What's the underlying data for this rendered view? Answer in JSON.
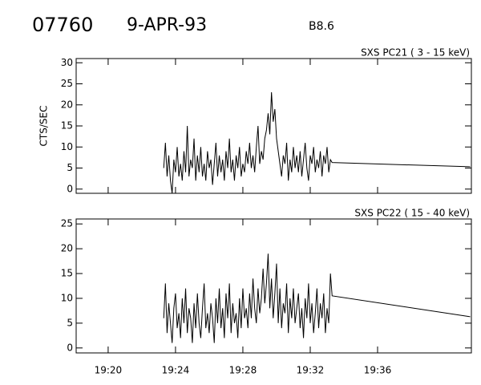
{
  "header": {
    "id": "07760",
    "date": "9-APR-93",
    "class": "B8.6"
  },
  "chart_data": [
    {
      "type": "line",
      "title": "SXS PC21  (  3 - 15 keV)",
      "y_label": "CTS/SEC",
      "x": [
        23.3,
        23.4,
        23.5,
        23.6,
        23.7,
        23.8,
        23.9,
        24.0,
        24.1,
        24.2,
        24.3,
        24.4,
        24.5,
        24.6,
        24.7,
        24.8,
        24.9,
        25.0,
        25.1,
        25.2,
        25.3,
        25.4,
        25.5,
        25.6,
        25.7,
        25.8,
        25.9,
        26.0,
        26.1,
        26.2,
        26.3,
        26.4,
        26.5,
        26.6,
        26.7,
        26.8,
        26.9,
        27.0,
        27.1,
        27.2,
        27.3,
        27.4,
        27.5,
        27.6,
        27.7,
        27.8,
        27.9,
        28.0,
        28.1,
        28.2,
        28.3,
        28.4,
        28.5,
        28.6,
        28.7,
        28.8,
        28.9,
        29.0,
        29.1,
        29.2,
        29.3,
        29.4,
        29.5,
        29.6,
        29.7,
        29.8,
        29.9,
        30.0,
        30.1,
        30.2,
        30.3,
        30.4,
        30.5,
        30.6,
        30.7,
        30.8,
        30.9,
        31.0,
        31.1,
        31.2,
        31.3,
        31.4,
        31.5,
        31.6,
        31.7,
        31.8,
        31.9,
        32.0,
        32.1,
        32.2,
        32.3,
        32.4,
        32.5,
        32.6,
        32.7,
        32.8,
        32.9,
        33.0,
        33.1,
        33.2,
        33.3,
        41.5
      ],
      "values": [
        5,
        11,
        3,
        8,
        2,
        -1,
        7,
        4,
        10,
        3,
        6,
        2,
        9,
        4,
        15,
        3,
        7,
        5,
        12,
        2,
        8,
        4,
        10,
        3,
        6,
        2,
        9,
        5,
        7,
        1,
        6,
        11,
        3,
        8,
        4,
        7,
        2,
        9,
        5,
        12,
        4,
        7,
        2,
        8,
        5,
        10,
        3,
        6,
        4,
        9,
        6,
        11,
        5,
        8,
        4,
        10,
        15,
        6,
        9,
        7,
        12,
        14,
        18,
        13,
        23,
        16,
        19,
        12,
        9,
        6,
        3,
        8,
        6,
        11,
        2,
        7,
        4,
        10,
        5,
        8,
        4,
        9,
        3,
        7,
        11,
        5,
        2,
        8,
        6,
        10,
        4,
        7,
        5,
        9,
        3,
        8,
        6,
        10,
        4,
        7,
        6.3,
        5.3
      ],
      "color": "#000000",
      "xlim": [
        18.1,
        41.57
      ],
      "xticks": [
        20,
        24,
        28,
        32,
        36
      ],
      "ylim": [
        -1,
        31
      ],
      "yticks": [
        0,
        5,
        10,
        15,
        20,
        25,
        30
      ]
    },
    {
      "type": "line",
      "title": "SXS PC22  ( 15 - 40 keV)",
      "x": [
        23.3,
        23.4,
        23.5,
        23.6,
        23.7,
        23.8,
        23.9,
        24.0,
        24.1,
        24.2,
        24.3,
        24.4,
        24.5,
        24.6,
        24.7,
        24.8,
        24.9,
        25.0,
        25.1,
        25.2,
        25.3,
        25.4,
        25.5,
        25.6,
        25.7,
        25.8,
        25.9,
        26.0,
        26.1,
        26.2,
        26.3,
        26.4,
        26.5,
        26.6,
        26.7,
        26.8,
        26.9,
        27.0,
        27.1,
        27.2,
        27.3,
        27.4,
        27.5,
        27.6,
        27.7,
        27.8,
        27.9,
        28.0,
        28.1,
        28.2,
        28.3,
        28.4,
        28.5,
        28.6,
        28.7,
        28.8,
        28.9,
        29.0,
        29.1,
        29.2,
        29.3,
        29.4,
        29.5,
        29.6,
        29.7,
        29.8,
        29.9,
        30.0,
        30.1,
        30.2,
        30.3,
        30.4,
        30.5,
        30.6,
        30.7,
        30.8,
        30.9,
        31.0,
        31.1,
        31.2,
        31.3,
        31.4,
        31.5,
        31.6,
        31.7,
        31.8,
        31.9,
        32.0,
        32.1,
        32.2,
        32.3,
        32.4,
        32.5,
        32.6,
        32.7,
        32.8,
        32.9,
        33.0,
        33.1,
        33.2,
        33.3,
        41.5
      ],
      "values": [
        6,
        13,
        3,
        9,
        5,
        1,
        8,
        11,
        4,
        7,
        2,
        10,
        5,
        12,
        3,
        8,
        6,
        1,
        9,
        4,
        11,
        5,
        2,
        8,
        13,
        4,
        7,
        3,
        9,
        6,
        1,
        10,
        5,
        12,
        4,
        8,
        2,
        11,
        6,
        13,
        3,
        9,
        5,
        7,
        2,
        10,
        4,
        12,
        6,
        8,
        4,
        11,
        6,
        14,
        8,
        5,
        12,
        7,
        10,
        16,
        9,
        13,
        19,
        8,
        14,
        6,
        11,
        17,
        5,
        12,
        4,
        9,
        7,
        13,
        3,
        10,
        6,
        12,
        5,
        8,
        11,
        4,
        8,
        2,
        10,
        6,
        13,
        5,
        9,
        3,
        7,
        12,
        4,
        9,
        6,
        11,
        3,
        8,
        5,
        15,
        10.5,
        6.3
      ],
      "color": "#000000",
      "xlim": [
        18.1,
        41.57
      ],
      "xticks": [
        {
          "value": 20,
          "label": "19:20"
        },
        {
          "value": 24,
          "label": "19:24"
        },
        {
          "value": 28,
          "label": "19:28"
        },
        {
          "value": 32,
          "label": "19:32"
        },
        {
          "value": 36,
          "label": "19:36"
        }
      ],
      "ylim": [
        -1,
        26
      ],
      "yticks": [
        0,
        5,
        10,
        15,
        20,
        25
      ]
    }
  ]
}
